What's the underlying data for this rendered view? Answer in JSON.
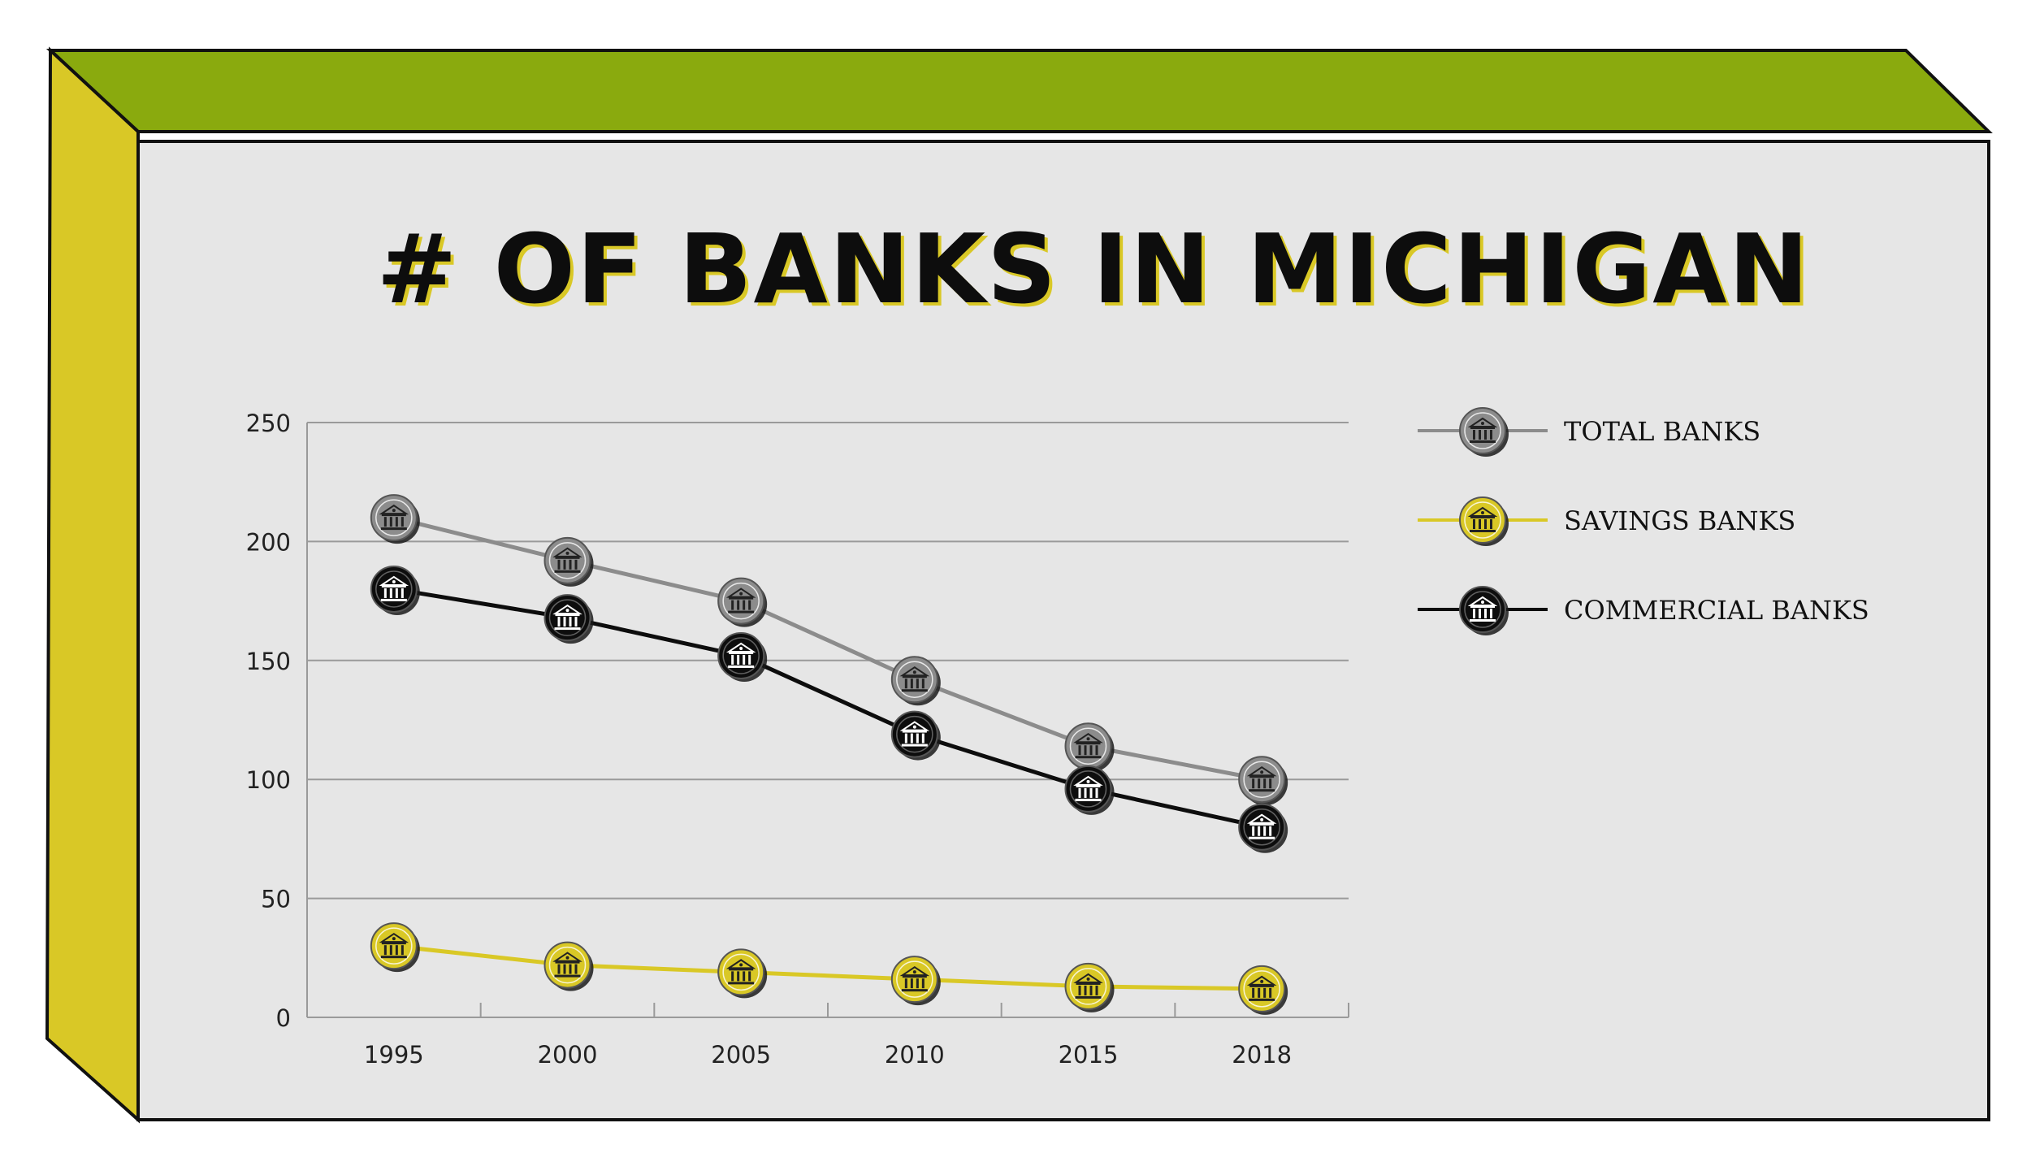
{
  "colors": {
    "top_face": "#8aaa0e",
    "side_face": "#d9c826",
    "panel": "#e6e6e6",
    "outline": "#111111",
    "grid": "#9a9a9a",
    "title_shadow": "#d9c826",
    "total": "#8c8c8c",
    "savings": "#d9c826",
    "commercial": "#0d0d0d"
  },
  "chart_data": {
    "type": "line",
    "title": "# OF BANKS IN MICHIGAN",
    "xlabel": "",
    "ylabel": "",
    "categories": [
      "1995",
      "2000",
      "2005",
      "2010",
      "2015",
      "2018"
    ],
    "y_ticks": [
      "0",
      "50",
      "100",
      "150",
      "200",
      "250"
    ],
    "ylim": [
      0,
      250
    ],
    "grid": true,
    "legend_position": "right",
    "marker_icon": "bank-building-icon",
    "series": [
      {
        "key": "total",
        "name": "TOTAL BANKS",
        "values": [
          210,
          192,
          175,
          142,
          114,
          100
        ]
      },
      {
        "key": "savings",
        "name": "SAVINGS BANKS",
        "values": [
          30,
          22,
          19,
          16,
          13,
          12
        ]
      },
      {
        "key": "commercial",
        "name": "COMMERCIAL BANKS",
        "values": [
          180,
          168,
          152,
          119,
          96,
          80
        ]
      }
    ]
  }
}
